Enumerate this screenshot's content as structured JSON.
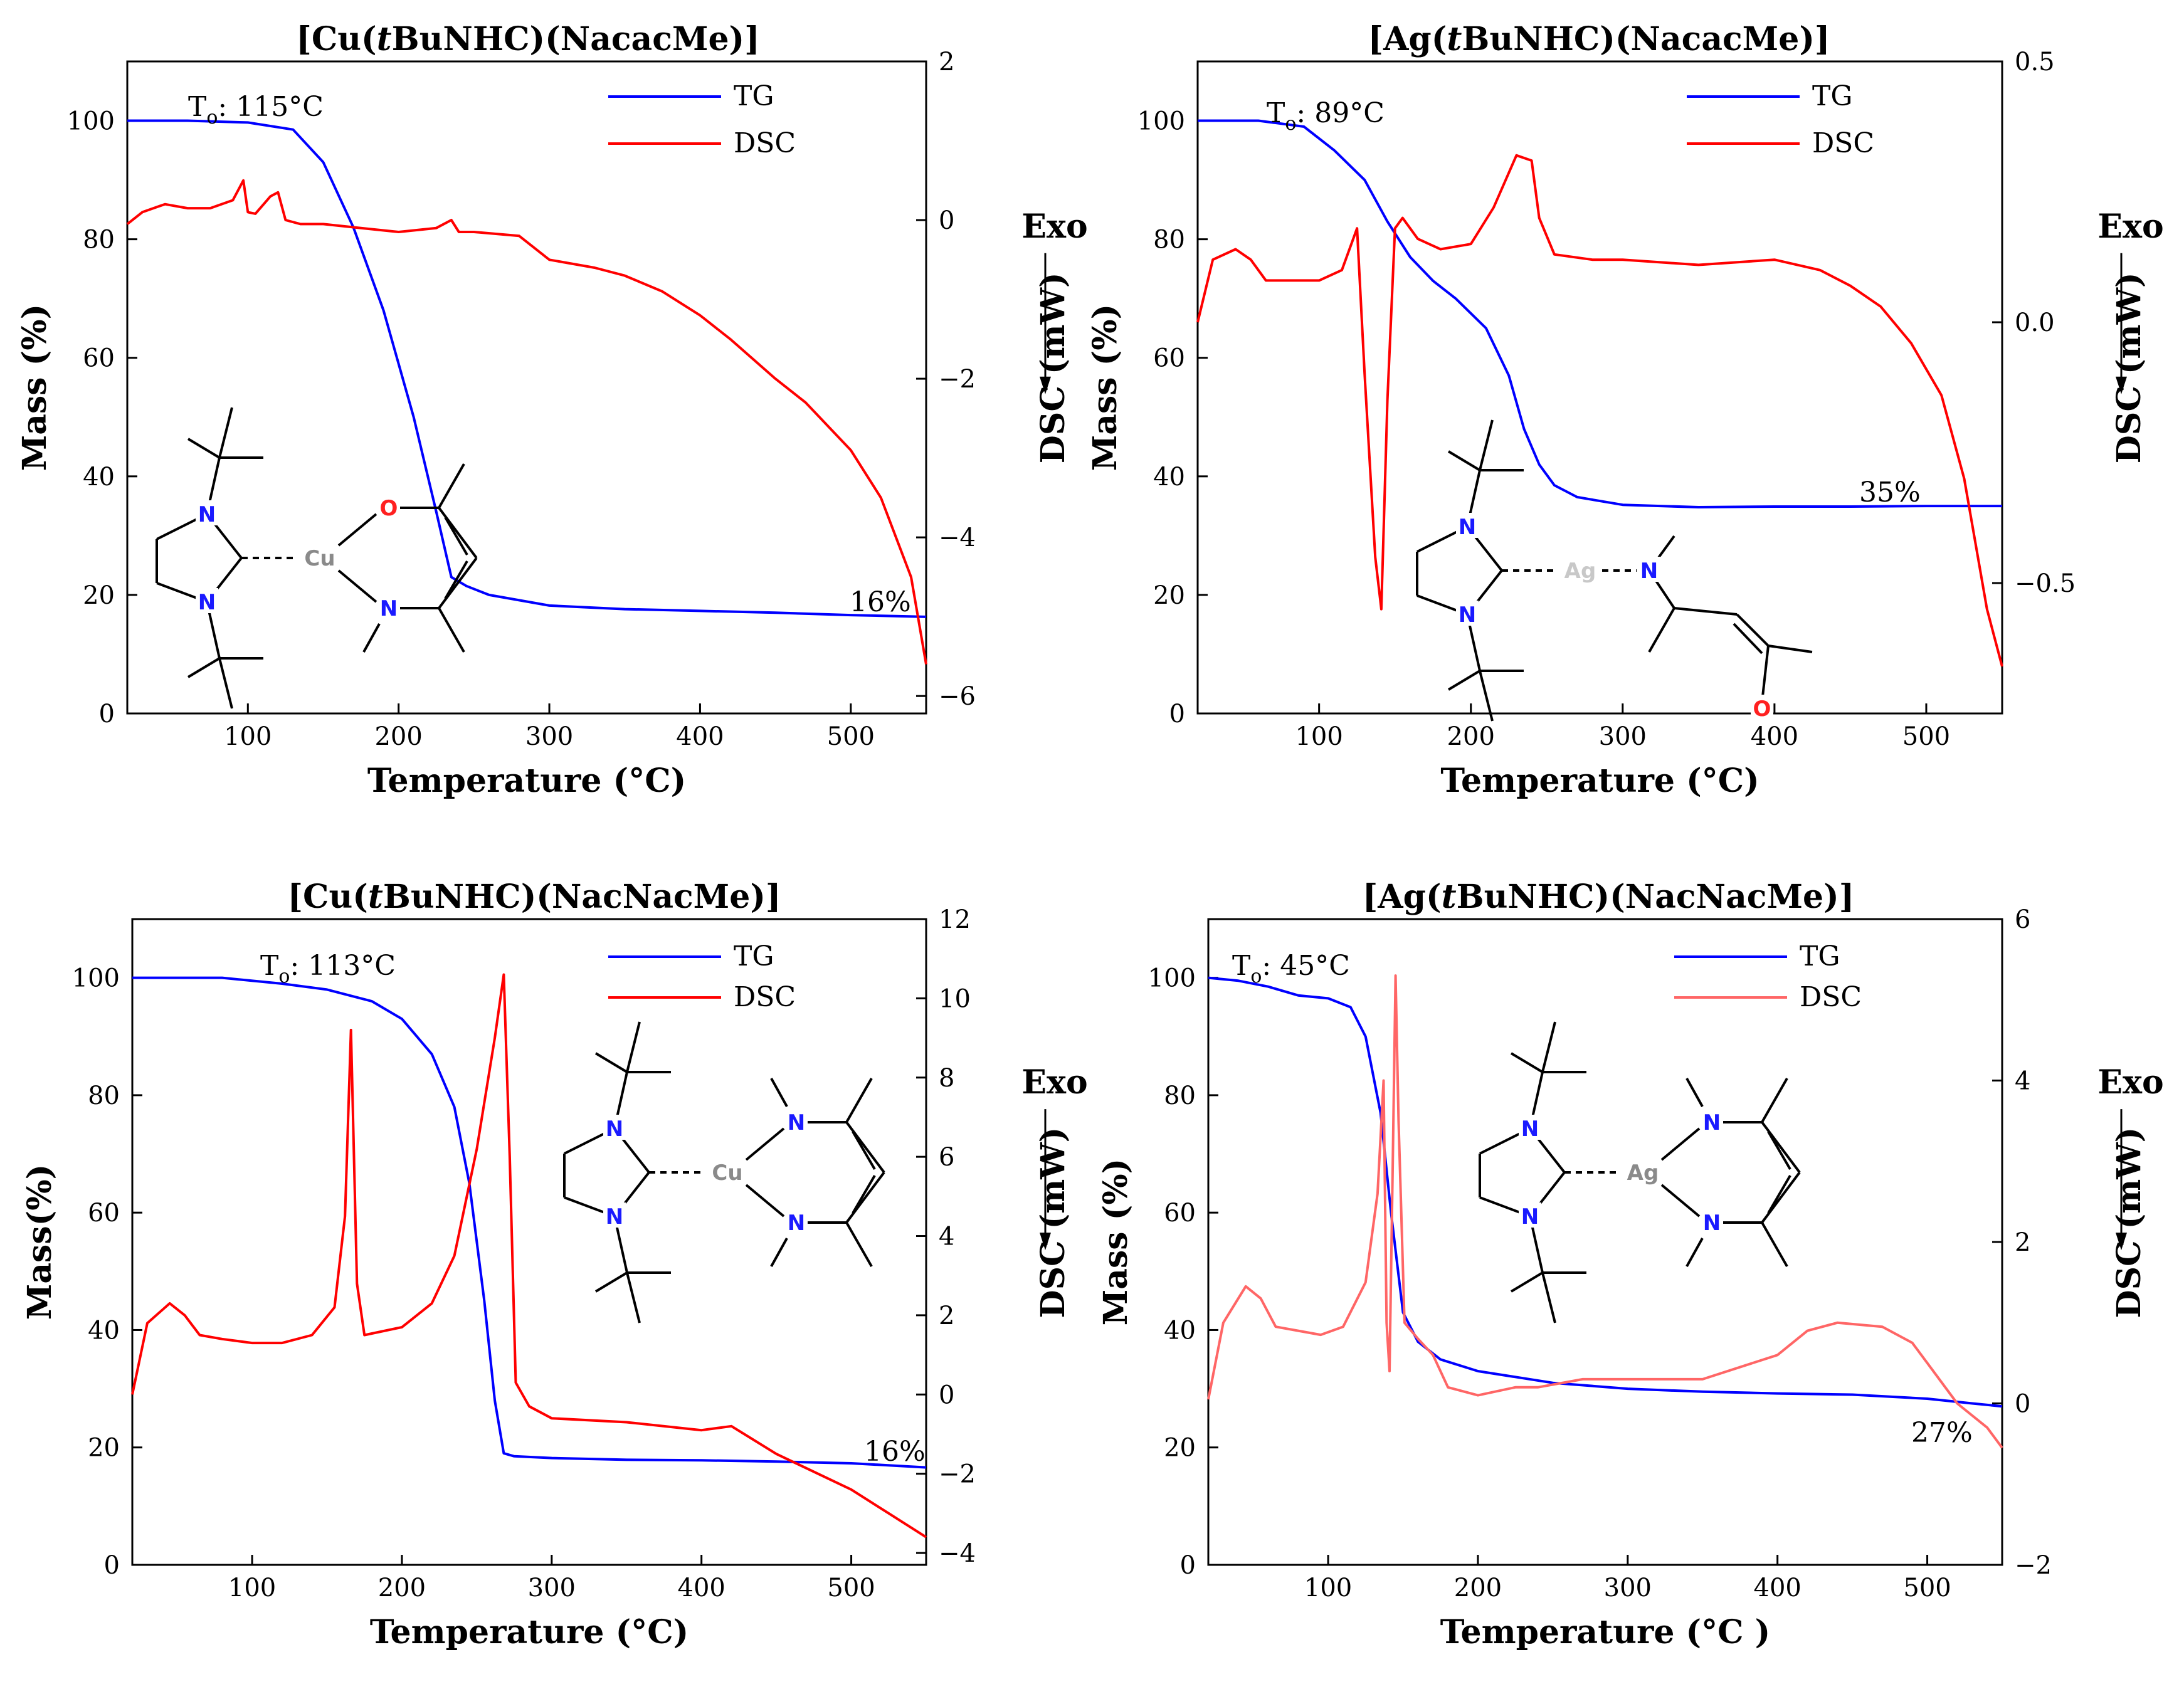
{
  "chart_data": [
    {
      "type": "line",
      "title": "[Cu(tBuNHC)(NacacMe)]",
      "title_parts": [
        {
          "t": "[Cu("
        },
        {
          "t": "t",
          "i": true
        },
        {
          "t": "BuNHC)(NacacMe)]"
        }
      ],
      "xlabel": "Temperature (°C)",
      "ylabel_left": "Mass (%)",
      "ylabel_right": "DSC (mW)",
      "exo_label": "Exo",
      "xlim": [
        20,
        550
      ],
      "ylim_left": [
        0,
        110
      ],
      "ylim_right": [
        -6.22,
        2
      ],
      "x_ticks": [
        "100",
        "200",
        "300",
        "400",
        "500"
      ],
      "x_tick_values": [
        100,
        200,
        300,
        400,
        500
      ],
      "y_ticks_left": [
        "0",
        "20",
        "40",
        "60",
        "80",
        "100"
      ],
      "y_tick_values_left": [
        0,
        20,
        40,
        60,
        80,
        100
      ],
      "y_ticks_right": [
        "−6",
        "−4",
        "−2",
        "0",
        "2"
      ],
      "y_tick_values_right": [
        -6,
        -4,
        -2,
        0,
        2
      ],
      "legend": [
        "TG",
        "DSC"
      ],
      "onset_prefix": "T",
      "onset_sub": "o",
      "onset_value": ": 115°C",
      "residue": "16%",
      "molecule": "Cu",
      "series": [
        {
          "name": "TG",
          "axis": "left",
          "color": "#0000ff",
          "x": [
            20,
            60,
            100,
            130,
            150,
            170,
            190,
            210,
            225,
            235,
            245,
            260,
            300,
            350,
            400,
            450,
            500,
            550
          ],
          "y": [
            100,
            100,
            99.7,
            98.5,
            93,
            82,
            68,
            50,
            34,
            23,
            21.5,
            20,
            18.2,
            17.6,
            17.3,
            17,
            16.6,
            16.3
          ]
        },
        {
          "name": "DSC",
          "axis": "right",
          "color": "#ff0000",
          "x": [
            20,
            30,
            45,
            60,
            75,
            90,
            97,
            100,
            105,
            115,
            120,
            125,
            135,
            150,
            175,
            200,
            225,
            235,
            240,
            250,
            280,
            300,
            330,
            350,
            375,
            400,
            420,
            450,
            470,
            500,
            520,
            540,
            550
          ],
          "y": [
            -0.05,
            0.1,
            0.2,
            0.15,
            0.15,
            0.25,
            0.5,
            0.1,
            0.08,
            0.3,
            0.35,
            0,
            -0.05,
            -0.05,
            -0.1,
            -0.15,
            -0.1,
            0.0,
            -0.15,
            -0.15,
            -0.2,
            -0.5,
            -0.6,
            -0.7,
            -0.9,
            -1.2,
            -1.5,
            -2.0,
            -2.3,
            -2.9,
            -3.5,
            -4.5,
            -5.6
          ]
        }
      ]
    },
    {
      "type": "line",
      "title": "[Ag(tBuNHC)(NacacMe)]",
      "title_parts": [
        {
          "t": "[Ag("
        },
        {
          "t": "t",
          "i": true
        },
        {
          "t": "BuNHC)(NacacMe)]"
        }
      ],
      "xlabel": "Temperature (°C)",
      "ylabel_left": "Mass (%)",
      "ylabel_right": "DSC (mW)",
      "exo_label": "Exo",
      "xlim": [
        20,
        550
      ],
      "ylim_left": [
        0,
        110
      ],
      "ylim_right": [
        -0.75,
        0.5
      ],
      "x_ticks": [
        "100",
        "200",
        "300",
        "400",
        "500"
      ],
      "x_tick_values": [
        100,
        200,
        300,
        400,
        500
      ],
      "y_ticks_left": [
        "0",
        "20",
        "40",
        "60",
        "80",
        "100"
      ],
      "y_tick_values_left": [
        0,
        20,
        40,
        60,
        80,
        100
      ],
      "y_ticks_right": [
        "−0.5",
        "0.0",
        "0.5"
      ],
      "y_tick_values_right": [
        -0.5,
        0.0,
        0.5
      ],
      "legend": [
        "TG",
        "DSC"
      ],
      "onset_prefix": "T",
      "onset_sub": "o",
      "onset_value": ": 89°C",
      "residue": "35%",
      "molecule": "Ag-nacac",
      "series": [
        {
          "name": "TG",
          "axis": "left",
          "color": "#0000ff",
          "x": [
            20,
            60,
            90,
            110,
            130,
            145,
            160,
            175,
            190,
            210,
            225,
            235,
            245,
            255,
            270,
            300,
            350,
            400,
            450,
            500,
            550
          ],
          "y": [
            100,
            100,
            99,
            95,
            90,
            83,
            77,
            73,
            70,
            65,
            57,
            48,
            42,
            38.5,
            36.5,
            35.2,
            34.8,
            34.9,
            34.9,
            35,
            35
          ]
        },
        {
          "name": "DSC",
          "axis": "right",
          "color": "#ff0000",
          "x": [
            20,
            30,
            45,
            55,
            65,
            80,
            100,
            115,
            125,
            130,
            137,
            141,
            145,
            150,
            155,
            165,
            180,
            200,
            215,
            230,
            240,
            245,
            255,
            280,
            300,
            350,
            400,
            430,
            450,
            470,
            490,
            510,
            525,
            540,
            550
          ],
          "y": [
            0.0,
            0.12,
            0.14,
            0.12,
            0.08,
            0.08,
            0.08,
            0.1,
            0.18,
            -0.1,
            -0.45,
            -0.55,
            -0.15,
            0.18,
            0.2,
            0.16,
            0.14,
            0.15,
            0.22,
            0.32,
            0.31,
            0.2,
            0.13,
            0.12,
            0.12,
            0.11,
            0.12,
            0.1,
            0.07,
            0.03,
            -0.04,
            -0.14,
            -0.3,
            -0.55,
            -0.66
          ]
        }
      ]
    },
    {
      "type": "line",
      "title": "[Cu(tBuNHC)(NacNacMe)]",
      "title_parts": [
        {
          "t": "[Cu("
        },
        {
          "t": "t",
          "i": true
        },
        {
          "t": "BuNHC)(NacNacMe)]"
        }
      ],
      "xlabel": "Temperature (°C)",
      "ylabel_left": "Mass(%)",
      "ylabel_right": "DSC (mW)",
      "exo_label": "Exo",
      "xlim": [
        20,
        550
      ],
      "ylim_left": [
        0,
        110
      ],
      "ylim_right": [
        -4.3,
        12
      ],
      "x_ticks": [
        "100",
        "200",
        "300",
        "400",
        "500"
      ],
      "x_tick_values": [
        100,
        200,
        300,
        400,
        500
      ],
      "y_ticks_left": [
        "0",
        "20",
        "40",
        "60",
        "80",
        "100"
      ],
      "y_tick_values_left": [
        0,
        20,
        40,
        60,
        80,
        100
      ],
      "y_ticks_right": [
        "−4",
        "−2",
        "0",
        "2",
        "4",
        "6",
        "8",
        "10",
        "12"
      ],
      "y_tick_values_right": [
        -4,
        -2,
        0,
        2,
        4,
        6,
        8,
        10,
        12
      ],
      "legend": [
        "TG",
        "DSC"
      ],
      "onset_prefix": "T",
      "onset_sub": "o",
      "onset_value": ": 113°C",
      "residue": "16%",
      "molecule": "Cu-nacnac",
      "series": [
        {
          "name": "TG",
          "axis": "left",
          "color": "#0000ff",
          "x": [
            20,
            80,
            120,
            150,
            180,
            200,
            220,
            235,
            245,
            255,
            262,
            268,
            275,
            300,
            350,
            400,
            450,
            500,
            550
          ],
          "y": [
            100,
            100,
            99,
            98,
            96,
            93,
            87,
            78,
            65,
            45,
            28,
            19,
            18.5,
            18.2,
            17.9,
            17.8,
            17.6,
            17.3,
            16.6
          ]
        },
        {
          "name": "DSC",
          "axis": "right",
          "color": "#ff0000",
          "x": [
            20,
            30,
            45,
            55,
            65,
            80,
            100,
            120,
            140,
            155,
            162,
            166,
            170,
            175,
            200,
            220,
            235,
            250,
            262,
            268,
            272,
            276,
            285,
            300,
            350,
            400,
            420,
            450,
            500,
            550
          ],
          "y": [
            0,
            1.8,
            2.3,
            2.0,
            1.5,
            1.4,
            1.3,
            1.3,
            1.5,
            2.2,
            4.5,
            9.2,
            2.8,
            1.5,
            1.7,
            2.3,
            3.5,
            6.2,
            9.0,
            10.6,
            6.0,
            0.3,
            -0.3,
            -0.6,
            -0.7,
            -0.9,
            -0.8,
            -1.5,
            -2.4,
            -3.6
          ]
        }
      ]
    },
    {
      "type": "line",
      "title": "[Ag(tBuNHC)(NacNacMe)]",
      "title_parts": [
        {
          "t": "[Ag("
        },
        {
          "t": "t",
          "i": true
        },
        {
          "t": "BuNHC)(NacNacMe)]"
        }
      ],
      "xlabel": "Temperature (°C )",
      "ylabel_left": "Mass (%)",
      "ylabel_right": "DSC (mW)",
      "exo_label": "Exo",
      "xlim": [
        20,
        550
      ],
      "ylim_left": [
        0,
        110
      ],
      "ylim_right": [
        -2,
        6
      ],
      "x_ticks": [
        "100",
        "200",
        "300",
        "400",
        "500"
      ],
      "x_tick_values": [
        100,
        200,
        300,
        400,
        500
      ],
      "y_ticks_left": [
        "0",
        "20",
        "40",
        "60",
        "80",
        "100"
      ],
      "y_tick_values_left": [
        0,
        20,
        40,
        60,
        80,
        100
      ],
      "y_ticks_right": [
        "−2",
        "0",
        "2",
        "4",
        "6"
      ],
      "y_tick_values_right": [
        -2,
        0,
        2,
        4,
        6
      ],
      "legend": [
        "TG",
        "DSC"
      ],
      "onset_prefix": "T",
      "onset_sub": "o",
      "onset_value": ": 45°C",
      "residue": "27%",
      "molecule": "Ag-nacnac",
      "series": [
        {
          "name": "TG",
          "axis": "left",
          "color": "#0000ff",
          "x": [
            20,
            40,
            60,
            80,
            100,
            115,
            125,
            135,
            142,
            150,
            160,
            175,
            200,
            250,
            300,
            350,
            400,
            450,
            500,
            530,
            550
          ],
          "y": [
            100,
            99.5,
            98.5,
            97,
            96.5,
            95,
            90,
            77,
            60,
            43,
            38,
            35,
            33,
            31,
            30,
            29.5,
            29.2,
            29,
            28.3,
            27.5,
            27
          ]
        },
        {
          "name": "DSC",
          "axis": "right",
          "color": "#ff6666",
          "x": [
            20,
            30,
            45,
            55,
            65,
            80,
            95,
            110,
            125,
            133,
            137,
            139,
            141,
            143,
            145,
            147,
            151,
            160,
            170,
            180,
            200,
            225,
            240,
            270,
            300,
            350,
            400,
            420,
            440,
            470,
            490,
            500,
            520,
            540,
            550
          ],
          "y": [
            0.05,
            1.0,
            1.45,
            1.3,
            0.95,
            0.9,
            0.85,
            0.95,
            1.5,
            2.6,
            4.0,
            1.0,
            0.4,
            2.8,
            5.3,
            3.5,
            1.0,
            0.8,
            0.6,
            0.2,
            0.1,
            0.2,
            0.2,
            0.3,
            0.3,
            0.3,
            0.6,
            0.9,
            1.0,
            0.95,
            0.75,
            0.5,
            0.0,
            -0.3,
            -0.55
          ]
        }
      ]
    }
  ]
}
